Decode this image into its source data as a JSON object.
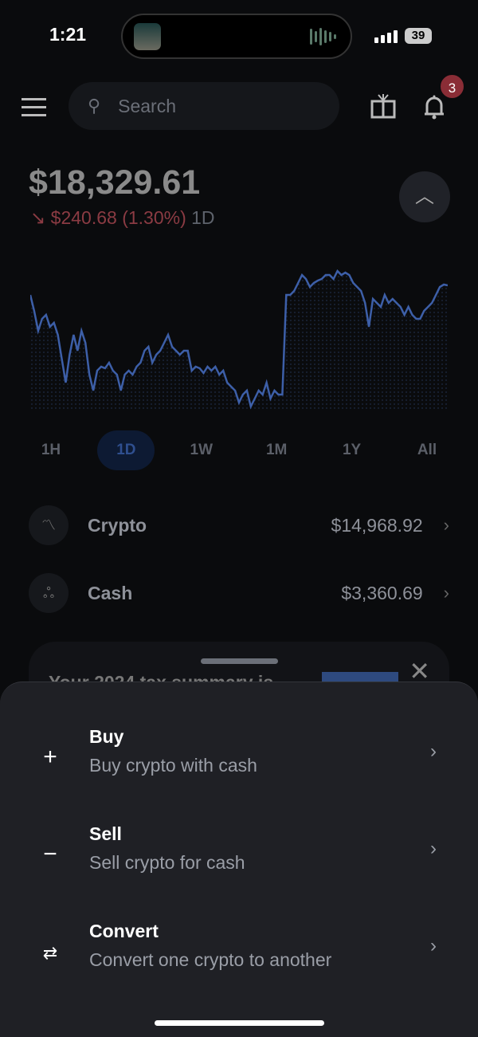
{
  "status_bar": {
    "time": "1:21",
    "battery": "39"
  },
  "header": {
    "search_placeholder": "Search",
    "notification_count": "3"
  },
  "portfolio": {
    "balance": "$18,329.61",
    "change_arrow": "↘",
    "change": "$240.68 (1.30%)",
    "period": "1D"
  },
  "chart_data": {
    "type": "line",
    "color": "#3d5fa8",
    "grid": false,
    "values": [
      140,
      120,
      95,
      110,
      115,
      100,
      105,
      90,
      60,
      30,
      65,
      90,
      70,
      95,
      80,
      40,
      20,
      45,
      50,
      48,
      55,
      45,
      40,
      20,
      40,
      45,
      40,
      50,
      55,
      70,
      75,
      55,
      65,
      70,
      80,
      90,
      75,
      70,
      65,
      70,
      70,
      45,
      50,
      48,
      42,
      50,
      45,
      50,
      40,
      45,
      30,
      25,
      20,
      5,
      15,
      20,
      0,
      10,
      20,
      15,
      30,
      10,
      20,
      15,
      15,
      140,
      140,
      145,
      155,
      165,
      160,
      150,
      155,
      158,
      160,
      165,
      165,
      160,
      170,
      165,
      168,
      165,
      155,
      150,
      145,
      130,
      100,
      135,
      130,
      125,
      140,
      130,
      135,
      130,
      125,
      115,
      125,
      115,
      110,
      110,
      120,
      125,
      130,
      140,
      150,
      153,
      152
    ]
  },
  "time_ranges": [
    "1H",
    "1D",
    "1W",
    "1M",
    "1Y",
    "All"
  ],
  "selected_range": "1D",
  "assets": [
    {
      "label": "Crypto",
      "value": "$14,968.92",
      "icon": "chart-line-icon"
    },
    {
      "label": "Cash",
      "value": "$3,360.69",
      "icon": "coins-icon"
    }
  ],
  "promo": {
    "text": "Your 2024 tax summary is"
  },
  "sheet": {
    "items": [
      {
        "title": "Buy",
        "subtitle": "Buy crypto with cash",
        "icon": "plus-icon"
      },
      {
        "title": "Sell",
        "subtitle": "Sell crypto for cash",
        "icon": "minus-icon"
      },
      {
        "title": "Convert",
        "subtitle": "Convert one crypto to another",
        "icon": "swap-icon"
      }
    ]
  }
}
